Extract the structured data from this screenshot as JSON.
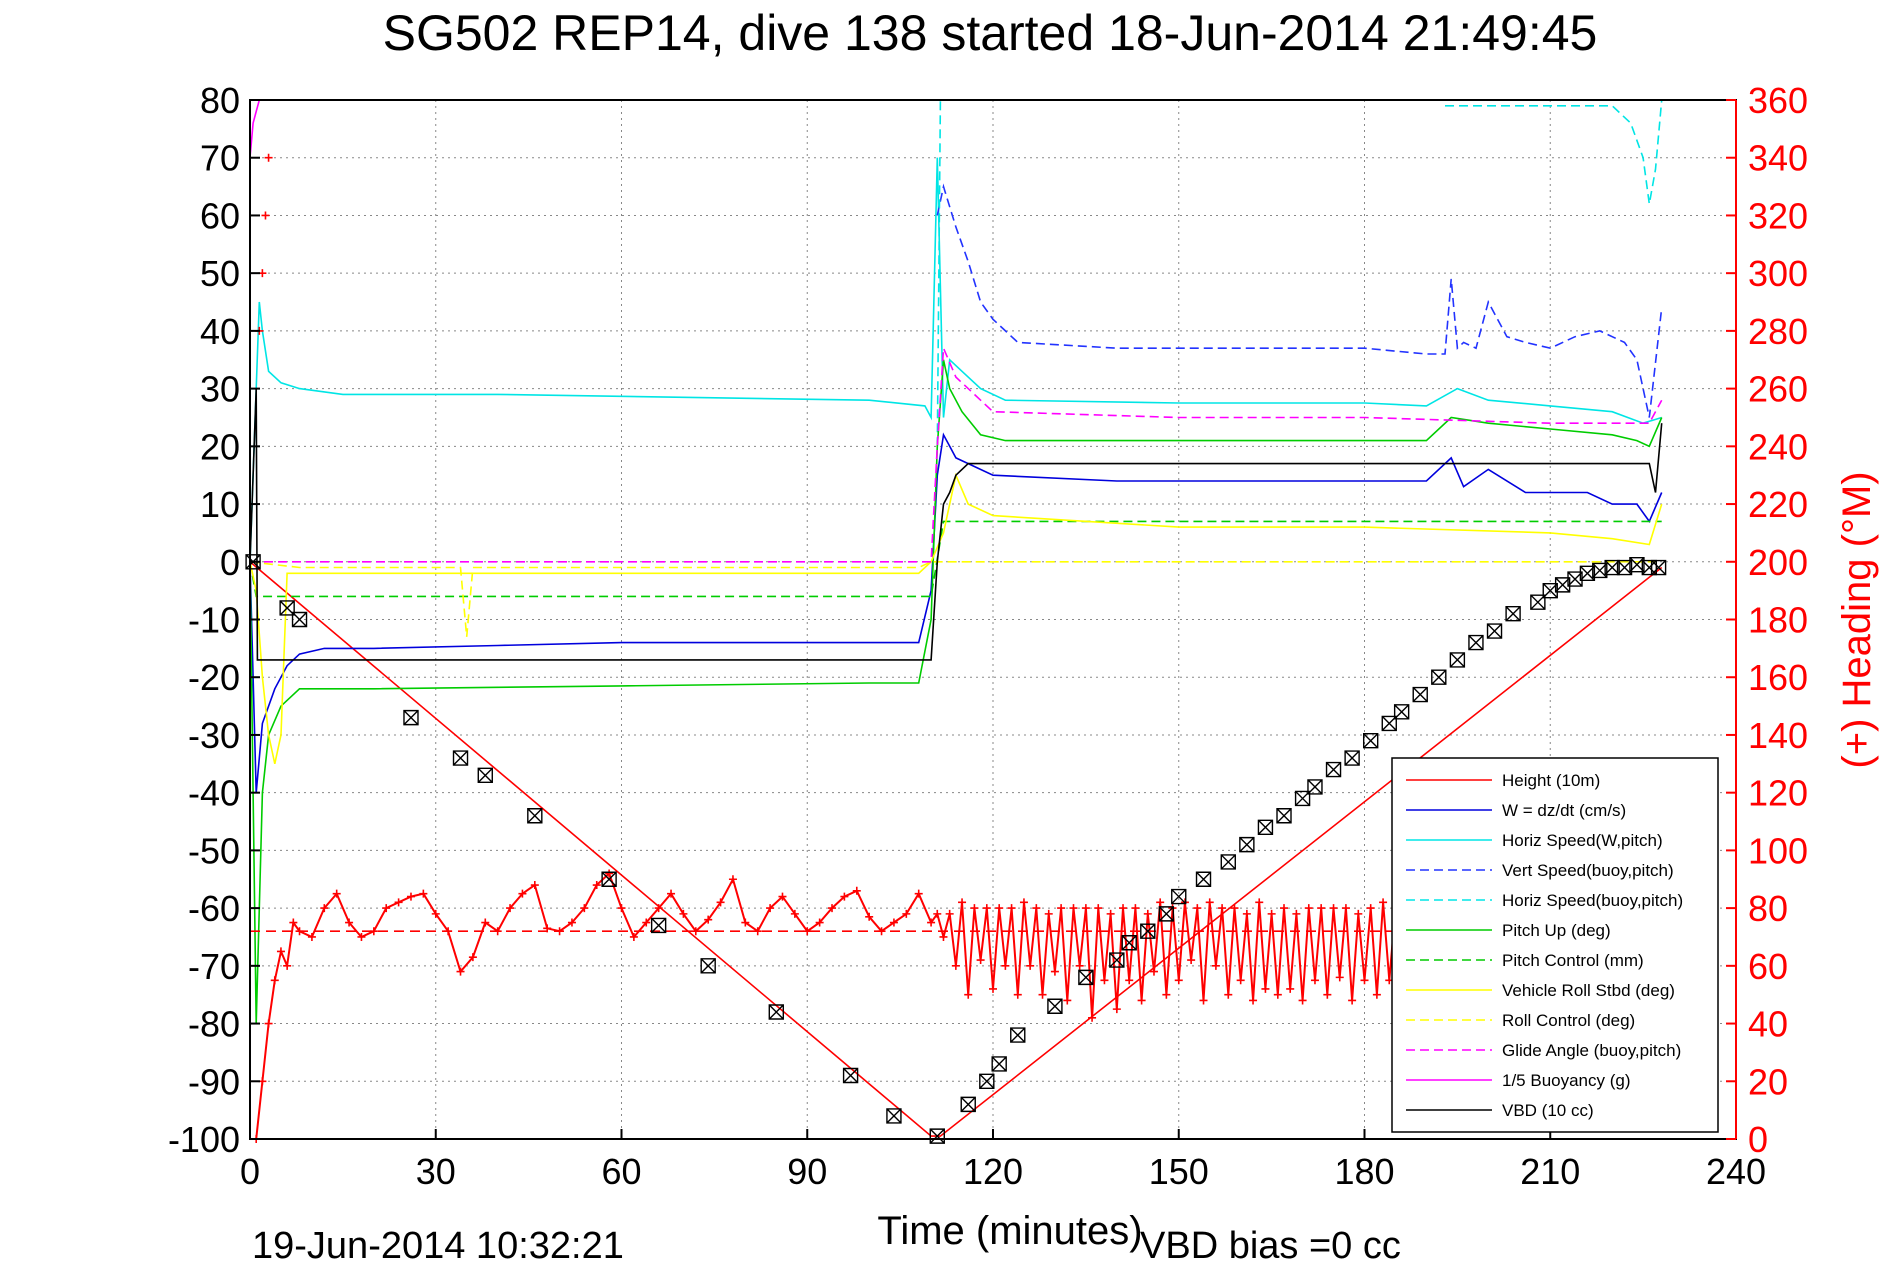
{
  "chart_data": {
    "type": "line",
    "title": "SG502 REP14, dive 138 started 18-Jun-2014 21:49:45",
    "xlabel": "Time (minutes)",
    "ylabel": "",
    "y2label": "(+) Heading (°M)",
    "xlim": [
      0,
      240
    ],
    "ylim": [
      -100,
      80
    ],
    "y2lim": [
      0,
      360
    ],
    "xticks": [
      "0",
      "30",
      "60",
      "90",
      "120",
      "150",
      "180",
      "210",
      "240"
    ],
    "yticks": [
      "80",
      "70",
      "60",
      "50",
      "40",
      "30",
      "20",
      "10",
      "0",
      "-10",
      "-20",
      "-30",
      "-40",
      "-50",
      "-60",
      "-70",
      "-80",
      "-90",
      "-100"
    ],
    "y2ticks": [
      "360",
      "340",
      "320",
      "300",
      "280",
      "260",
      "240",
      "220",
      "200",
      "180",
      "160",
      "140",
      "120",
      "100",
      "80",
      "60",
      "40",
      "20",
      "0"
    ],
    "grid": true,
    "legend_position": "bottom-right",
    "footer_left": "19-Jun-2014 10:32:21",
    "footer_right": "VBD bias =0 cc",
    "colors": {
      "height": "#ff0000",
      "w": "#0000dd",
      "horiz_speed": "#00e5e5",
      "vert_speed_buoy": "#2233ff",
      "horiz_speed_buoy": "#00e5e5",
      "pitch": "#00cc00",
      "pitch_control": "#00cc00",
      "roll": "#ffff00",
      "roll_control": "#ffff00",
      "glide_angle": "#ff00ff",
      "buoyancy": "#ff00ff",
      "vbd": "#000000",
      "heading": "#ff0000"
    },
    "series": [
      {
        "key": "height",
        "name": "Height (10m)",
        "color": "#ff0000",
        "dash": false,
        "x": [
          0,
          110,
          111.5,
          228
        ],
        "y": [
          0,
          -99.5,
          -99.5,
          -1
        ]
      },
      {
        "key": "w",
        "name": "W = dz/dt (cm/s)",
        "color": "#0000dd",
        "dash": false,
        "x": [
          0,
          1,
          2,
          4,
          6,
          8,
          12,
          20,
          40,
          60,
          80,
          100,
          108,
          110,
          111,
          112,
          113,
          114,
          116,
          120,
          140,
          160,
          180,
          190,
          194,
          196,
          200,
          206,
          210,
          216,
          220,
          224,
          226,
          228
        ],
        "y": [
          0,
          -40,
          -28,
          -22,
          -18,
          -16,
          -15,
          -15,
          -14.5,
          -14,
          -14,
          -14,
          -14,
          -5,
          15,
          22,
          20,
          18,
          17,
          15,
          14,
          14,
          14,
          14,
          18,
          13,
          16,
          12,
          12,
          12,
          10,
          10,
          7,
          12
        ]
      },
      {
        "key": "horiz_speed",
        "name": "Horiz Speed(W,pitch)",
        "color": "#00e5e5",
        "dash": false,
        "x": [
          0,
          1,
          1.5,
          2,
          3,
          5,
          8,
          15,
          40,
          70,
          100,
          109,
          110,
          111,
          112,
          113,
          115,
          118,
          122,
          150,
          180,
          190,
          195,
          200,
          210,
          220,
          225,
          228
        ],
        "y": [
          0,
          30,
          45,
          40,
          33,
          31,
          30,
          29,
          29,
          28.5,
          28,
          27,
          25,
          70,
          25,
          35,
          33,
          30,
          28,
          27.5,
          27.5,
          27,
          30,
          28,
          27,
          26,
          24,
          25
        ]
      },
      {
        "key": "vert_speed_buoy",
        "name": "Vert Speed(buoy,pitch)",
        "color": "#2233ff",
        "dash": true,
        "x": [
          111,
          112,
          114,
          116,
          118,
          120,
          124,
          140,
          160,
          180,
          190,
          193,
          194,
          195,
          196,
          198,
          200,
          203,
          206,
          210,
          214,
          218,
          222,
          224,
          226,
          228
        ],
        "y": [
          60,
          65,
          58,
          52,
          45,
          42,
          38,
          37,
          37,
          37,
          36,
          36,
          49,
          37,
          38,
          37,
          45,
          39,
          38,
          37,
          39,
          40,
          38,
          35,
          25,
          44
        ]
      },
      {
        "key": "horiz_speed_buoy",
        "name": "Horiz Speed(buoy,pitch)",
        "color": "#00e5e5",
        "dash": true,
        "x": [
          111,
          111.5,
          112,
          113
        ],
        "y": [
          20,
          80,
          80,
          80
        ]
      },
      {
        "key": "horiz_speed_buoy_b",
        "name": "",
        "color": "#00e5e5",
        "dash": true,
        "x": [
          193,
          200,
          210,
          215,
          220,
          223,
          225,
          226,
          227,
          228
        ],
        "y": [
          79,
          79,
          79,
          79,
          79,
          76,
          70,
          62,
          68,
          80
        ]
      },
      {
        "key": "pitch",
        "name": "Pitch Up (deg)",
        "color": "#00cc00",
        "dash": false,
        "x": [
          0,
          1,
          2,
          3,
          5,
          8,
          12,
          20,
          60,
          100,
          108,
          110,
          111,
          112,
          113,
          115,
          118,
          122,
          150,
          190,
          194,
          200,
          210,
          220,
          224,
          226,
          228
        ],
        "y": [
          0,
          -80,
          -40,
          -30,
          -25,
          -22,
          -22,
          -22,
          -21.5,
          -21,
          -21,
          -10,
          20,
          35,
          30,
          26,
          22,
          21,
          21,
          21,
          25,
          24,
          23,
          22,
          21,
          20,
          25
        ]
      },
      {
        "key": "pitch_control",
        "name": "Pitch Control (mm)",
        "color": "#00cc00",
        "dash": true,
        "x": [
          0,
          1,
          2,
          8,
          108,
          110,
          112,
          114,
          228
        ],
        "y": [
          0,
          -6,
          -6,
          -6,
          -6,
          -6,
          7,
          7,
          7
        ]
      },
      {
        "key": "roll",
        "name": "Vehicle Roll Stbd (deg)",
        "color": "#ffff00",
        "dash": false,
        "x": [
          0,
          1,
          2,
          3,
          4,
          5,
          6,
          8,
          12,
          30,
          50,
          70,
          90,
          108,
          110,
          112,
          114,
          116,
          120,
          150,
          180,
          210,
          220,
          226,
          228
        ],
        "y": [
          0,
          -5,
          -20,
          -30,
          -35,
          -30,
          -2,
          -2,
          -2,
          -2,
          -2,
          -2,
          -2,
          -2,
          0,
          5,
          15,
          10,
          8,
          6,
          6,
          5,
          4,
          3,
          10
        ]
      },
      {
        "key": "roll_control",
        "name": "Roll Control (deg)",
        "color": "#ffff00",
        "dash": true,
        "x": [
          0,
          8,
          30,
          34,
          35,
          36,
          60,
          90,
          108,
          110,
          112,
          150,
          180,
          210,
          228
        ],
        "y": [
          0,
          -1,
          -1,
          -1,
          -13,
          -1,
          -1,
          -1,
          -1,
          0,
          0,
          0,
          0,
          0,
          0
        ]
      },
      {
        "key": "glide_angle",
        "name": "Glide Angle (buoy,pitch)",
        "color": "#ff00ff",
        "dash": true,
        "x": [
          0,
          110,
          111,
          112,
          114,
          116,
          118,
          120,
          150,
          180,
          210,
          220,
          226,
          228
        ],
        "y": [
          0,
          0,
          20,
          37,
          32,
          30,
          28,
          26,
          25,
          25,
          24,
          24,
          24,
          28
        ]
      },
      {
        "key": "buoyancy",
        "name": "1/5 Buoyancy (g)",
        "color": "#ff00ff",
        "dash": false,
        "x": [
          0,
          0.5,
          1,
          1.5,
          2
        ],
        "y": [
          70,
          76,
          78,
          80,
          80
        ]
      },
      {
        "key": "vbd",
        "name": "VBD (10 cc)",
        "color": "#000000",
        "dash": false,
        "x": [
          0,
          1,
          1.2,
          2,
          108,
          110,
          111,
          112,
          113,
          114,
          116,
          220,
          226,
          227,
          228
        ],
        "y": [
          0,
          30,
          -17,
          -17,
          -17,
          -17,
          0,
          10,
          12,
          15,
          17,
          17,
          17,
          12,
          24
        ]
      }
    ],
    "heading": {
      "name": "Heading",
      "color": "#ff0000",
      "mean_line": 72,
      "x": [
        1,
        2,
        3,
        4,
        5,
        6,
        7,
        8,
        10,
        12,
        14,
        16,
        18,
        20,
        22,
        24,
        26,
        28,
        30,
        32,
        34,
        36,
        38,
        40,
        42,
        44,
        46,
        48,
        50,
        52,
        54,
        56,
        58,
        60,
        62,
        64,
        66,
        68,
        70,
        72,
        74,
        76,
        78,
        80,
        82,
        84,
        86,
        88,
        90,
        92,
        94,
        96,
        98,
        100,
        102,
        104,
        106,
        108,
        110,
        111,
        112,
        113,
        114,
        115,
        116,
        117,
        118,
        119,
        120,
        121,
        122,
        123,
        124,
        125,
        126,
        127,
        128,
        129,
        130,
        131,
        132,
        133,
        134,
        135,
        136,
        137,
        138,
        139,
        140,
        141,
        142,
        143,
        144,
        145,
        146,
        147,
        148,
        149,
        150,
        151,
        152,
        153,
        154,
        155,
        156,
        157,
        158,
        159,
        160,
        161,
        162,
        163,
        164,
        165,
        166,
        167,
        168,
        169,
        170,
        171,
        172,
        173,
        174,
        175,
        176,
        177,
        178,
        179,
        180,
        181,
        182,
        183,
        184,
        185
      ],
      "y": [
        0,
        20,
        40,
        55,
        65,
        60,
        75,
        72,
        70,
        80,
        85,
        75,
        70,
        72,
        80,
        82,
        84,
        85,
        78,
        72,
        58,
        63,
        75,
        72,
        80,
        85,
        88,
        73,
        72,
        75,
        80,
        88,
        92,
        80,
        70,
        75,
        80,
        85,
        78,
        72,
        76,
        82,
        90,
        75,
        72,
        80,
        84,
        78,
        72,
        75,
        80,
        84,
        86,
        77,
        72,
        75,
        78,
        85,
        75,
        78,
        70,
        78,
        60,
        82,
        50,
        80,
        62,
        80,
        52,
        80,
        60,
        80,
        50,
        82,
        60,
        80,
        50,
        78,
        58,
        80,
        48,
        80,
        60,
        80,
        42,
        80,
        55,
        78,
        45,
        80,
        55,
        80,
        48,
        78,
        58,
        82,
        50,
        80,
        55,
        82,
        62,
        80,
        48,
        82,
        60,
        80,
        50,
        80,
        55,
        78,
        48,
        82,
        52,
        78,
        50,
        80,
        52,
        78,
        48,
        80,
        55,
        80,
        50,
        80,
        56,
        80,
        48,
        78,
        55,
        80,
        50,
        82,
        55,
        80
      ]
    },
    "heading_early": {
      "x": [
        1.5,
        2,
        2.5,
        3
      ],
      "y": [
        280,
        300,
        320,
        340
      ]
    },
    "markers": {
      "name": "control markers",
      "x": [
        0.5,
        6,
        8,
        26,
        34,
        38,
        46,
        58,
        66,
        74,
        85,
        97,
        104,
        111,
        116,
        119,
        121,
        124,
        130,
        135,
        140,
        142,
        145,
        148,
        150,
        154,
        158,
        161,
        164,
        167,
        170,
        172,
        175,
        178,
        181,
        184,
        186,
        189,
        192,
        195,
        198,
        201,
        204,
        208,
        210,
        212,
        214,
        216,
        218,
        220,
        222,
        224,
        226,
        227.5
      ],
      "y": [
        0,
        -8,
        -10,
        -27,
        -34,
        -37,
        -44,
        -55,
        -63,
        -70,
        -78,
        -89,
        -96,
        -99.5,
        -94,
        -90,
        -87,
        -82,
        -77,
        -72,
        -69,
        -66,
        -64,
        -61,
        -58,
        -55,
        -52,
        -49,
        -46,
        -44,
        -41,
        -39,
        -36,
        -34,
        -31,
        -28,
        -26,
        -23,
        -20,
        -17,
        -14,
        -12,
        -9,
        -7,
        -5,
        -4,
        -3,
        -2,
        -1.5,
        -1,
        -1,
        -0.5,
        -1,
        -1
      ]
    }
  }
}
